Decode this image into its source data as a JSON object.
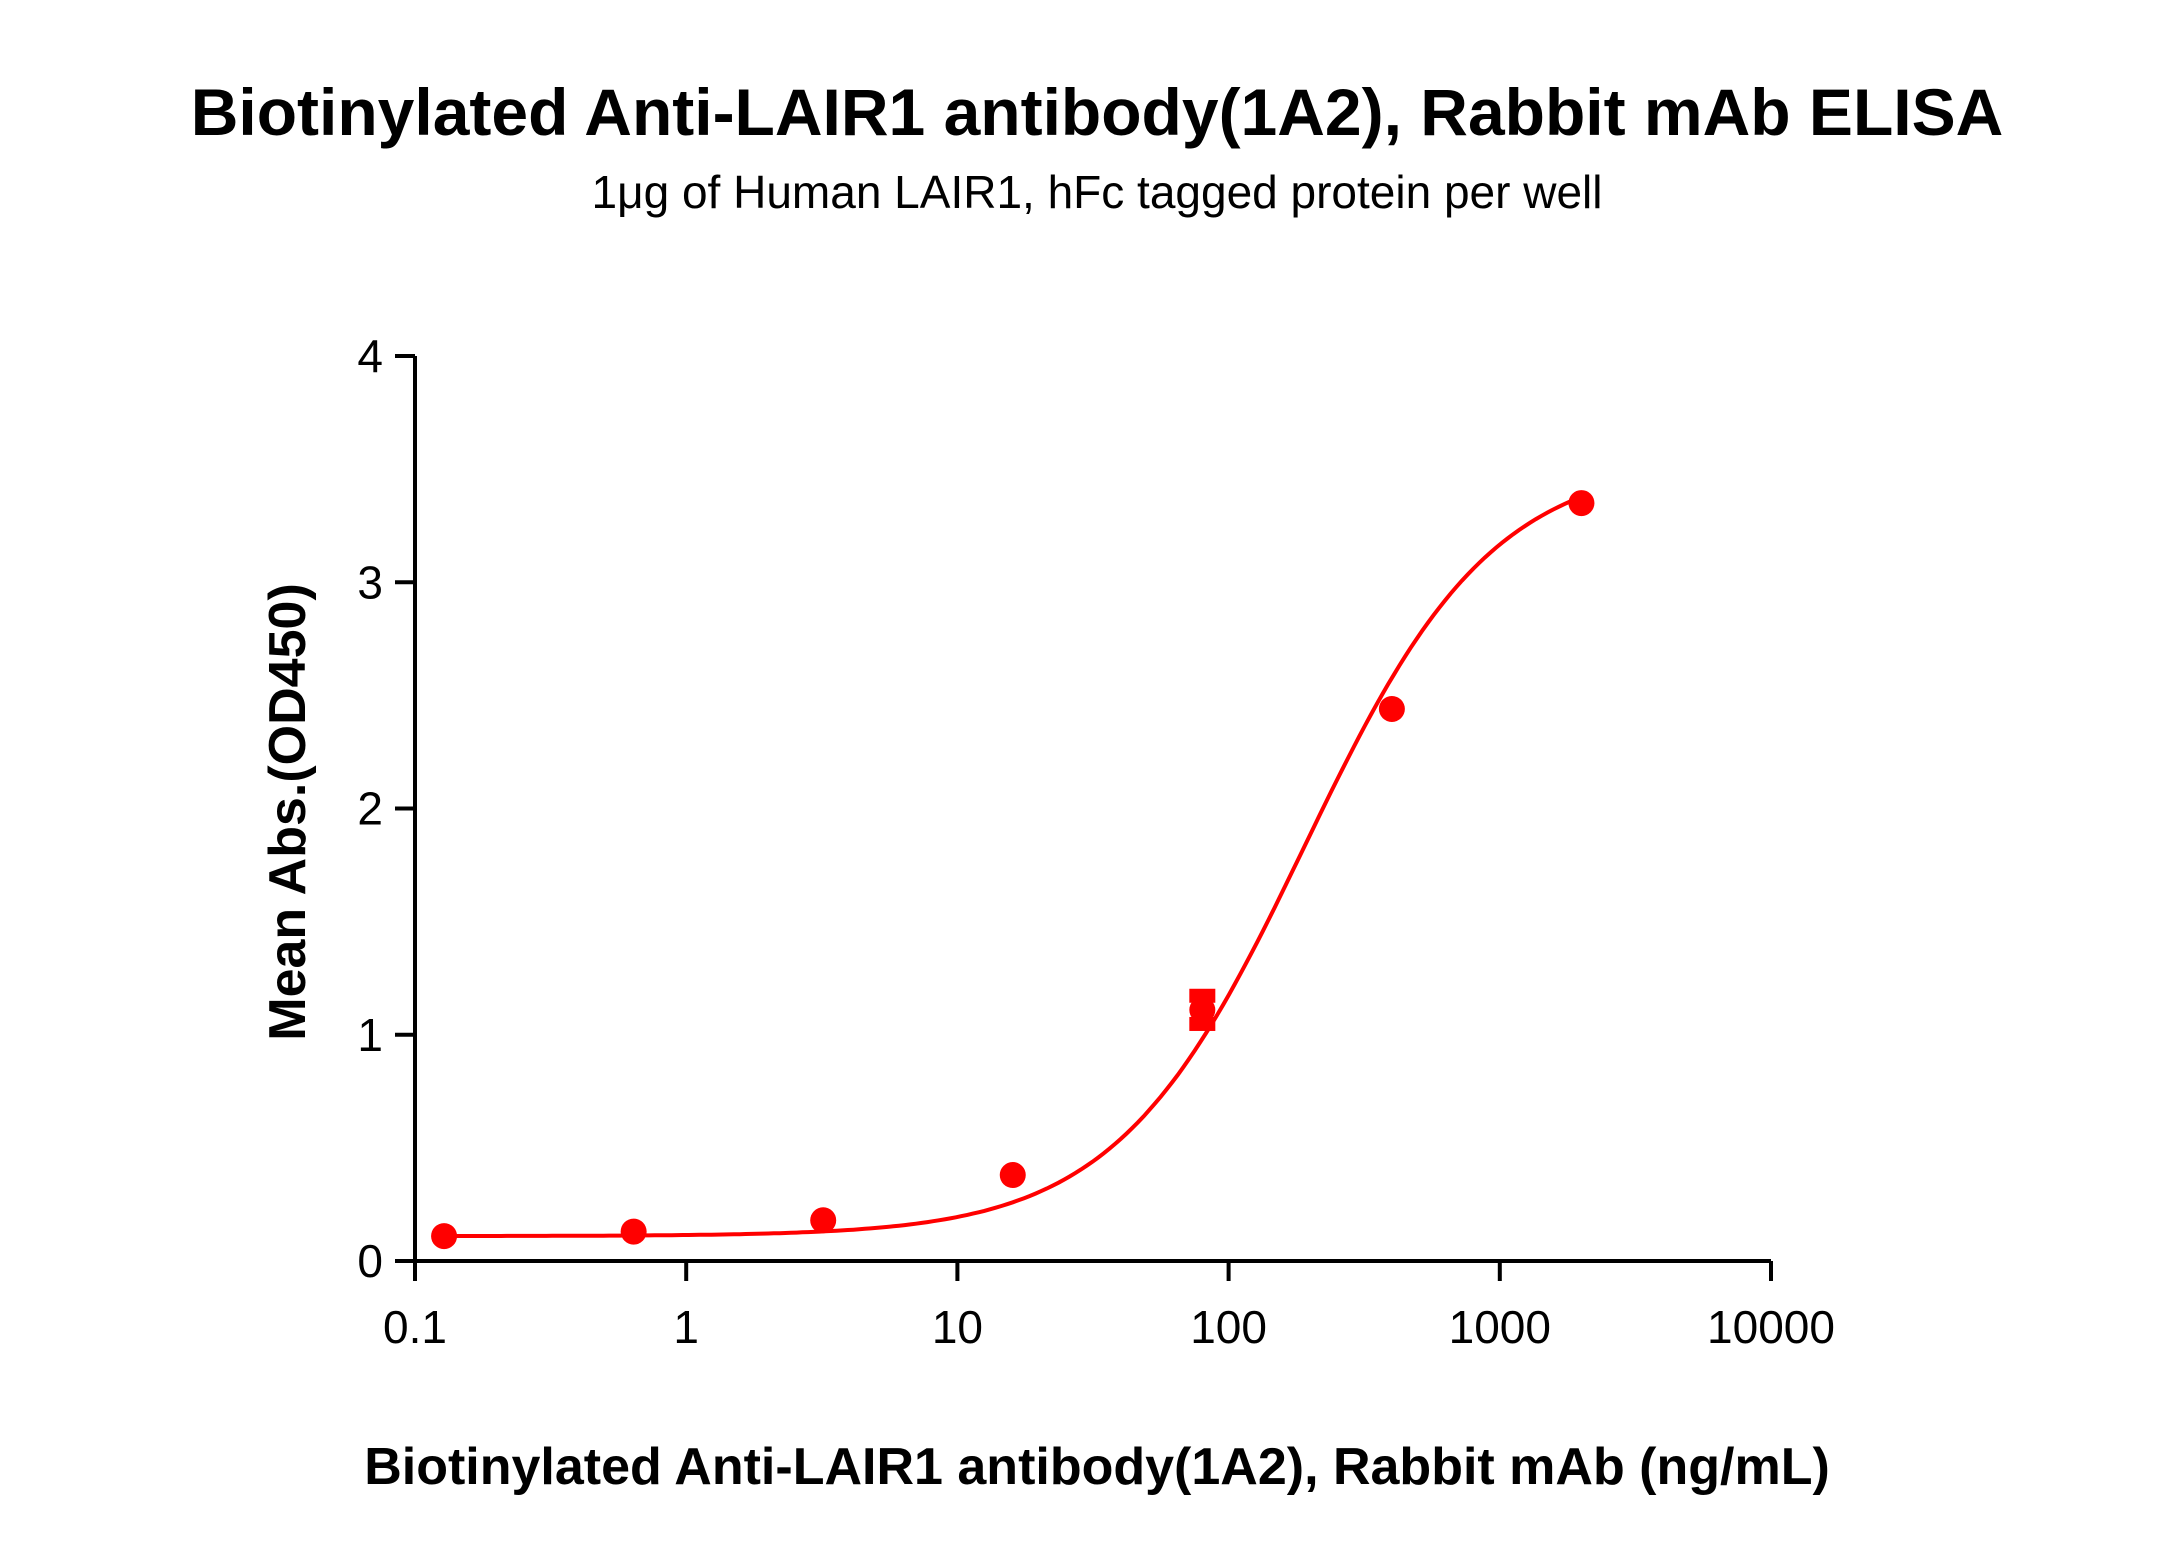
{
  "chart_data": {
    "type": "scatter",
    "title": "Biotinylated Anti-LAIR1 antibody(1A2), Rabbit mAb ELISA",
    "subtitle": "1μg of Human LAIR1, hFc tagged protein per well",
    "xlabel": "Biotinylated Anti-LAIR1 antibody(1A2), Rabbit mAb (ng/mL)",
    "ylabel": "Mean Abs.(OD450)",
    "xscale": "log",
    "xlim": [
      0.1,
      10000
    ],
    "ylim": [
      0,
      4
    ],
    "xticks": [
      "0.1",
      "1",
      "10",
      "100",
      "1000",
      "10000"
    ],
    "yticks": [
      "0",
      "1",
      "2",
      "3",
      "4"
    ],
    "grid": false,
    "color": "#ff0000",
    "fit_curve": true,
    "series": [
      {
        "x": [
          0.128,
          0.64,
          3.2,
          16,
          80,
          400,
          2000
        ],
        "y": [
          0.11,
          0.13,
          0.18,
          0.38,
          1.11,
          2.44,
          3.35
        ],
        "error": [
          0,
          0,
          0,
          0,
          0.08,
          0,
          0
        ]
      }
    ]
  }
}
